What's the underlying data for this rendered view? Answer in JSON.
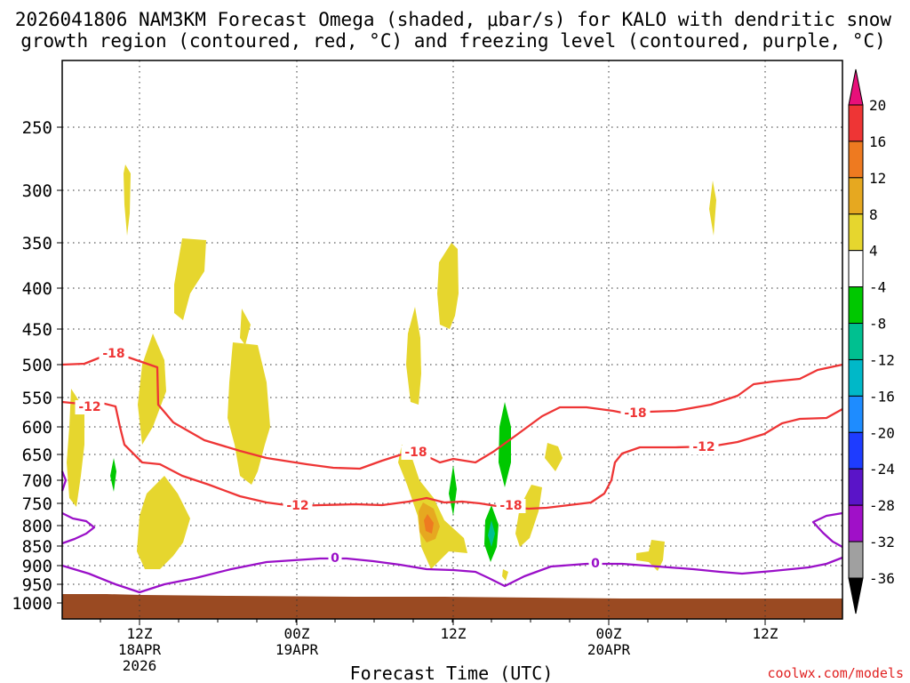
{
  "title_line1": "2026041806 NAM3KM Forecast Omega (shaded, μbar/s) for KALO with dendritic snow",
  "title_line2": "growth region (contoured, red, °C) and freezing level (contoured, purple, °C)",
  "watermark": "coolwx.com/models",
  "chart_data": {
    "type": "heatmap",
    "xlabel": "Forecast Time (UTC)",
    "ylabel": "Pressure (hPa)",
    "y_ticks": [
      "250",
      "300",
      "350",
      "400",
      "450",
      "500",
      "550",
      "600",
      "650",
      "700",
      "750",
      "800",
      "850",
      "900",
      "950",
      "1000"
    ],
    "x_ticks": [
      {
        "lines": [
          "12Z",
          "18APR",
          "2026"
        ]
      },
      {
        "lines": [
          "00Z",
          "19APR"
        ]
      },
      {
        "lines": [
          "12Z"
        ]
      },
      {
        "lines": [
          "00Z",
          "20APR"
        ]
      },
      {
        "lines": [
          "12Z"
        ]
      }
    ],
    "colorbar": {
      "labels": [
        "20",
        "16",
        "12",
        "8",
        "4",
        "-4",
        "-8",
        "-12",
        "-16",
        "-20",
        "-24",
        "-28",
        "-32",
        "-36"
      ],
      "colors": [
        "#e8107a",
        "#ee3535",
        "#ee7a20",
        "#e6a820",
        "#e6d62e",
        "#ffffff",
        "#00c800",
        "#00c090",
        "#00b8c8",
        "#1e8cff",
        "#1e3cff",
        "#5a14c8",
        "#a010c8",
        "#a0a0a0",
        "#000000"
      ]
    },
    "contour_labels": [
      {
        "label": "-18",
        "color": "#ee3535"
      },
      {
        "label": "-12",
        "color": "#ee3535"
      },
      {
        "label": "-18",
        "color": "#ee3535"
      },
      {
        "label": "-12",
        "color": "#ee3535"
      },
      {
        "label": "-18",
        "color": "#ee3535"
      },
      {
        "label": "-12",
        "color": "#ee3535"
      },
      {
        "label": "-18",
        "color": "#ee3535"
      },
      {
        "label": "-12",
        "color": "#ee3535"
      },
      {
        "label": "0",
        "color": "#9a10c8"
      },
      {
        "label": "0",
        "color": "#9a10c8"
      }
    ],
    "ground_color": "#9a4a22"
  }
}
